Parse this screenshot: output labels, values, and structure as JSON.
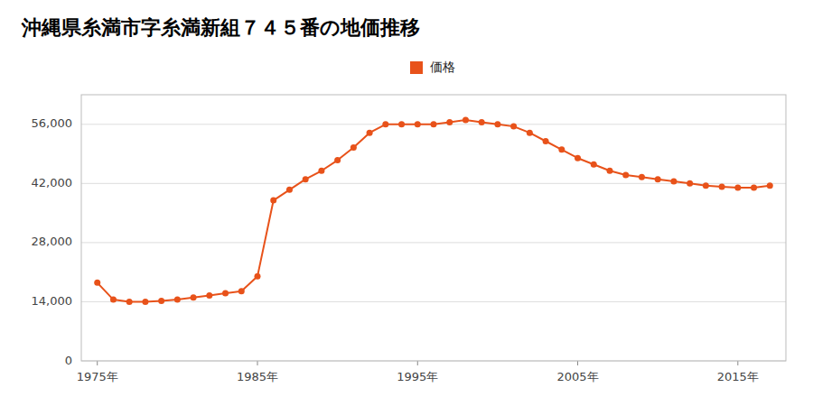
{
  "chart_data": {
    "type": "line",
    "title": "沖縄県糸満市字糸満新組７４５番の地価推移",
    "x": [
      1975,
      1976,
      1977,
      1978,
      1979,
      1980,
      1981,
      1982,
      1983,
      1984,
      1985,
      1986,
      1987,
      1988,
      1989,
      1990,
      1991,
      1992,
      1993,
      1994,
      1995,
      1996,
      1997,
      1998,
      1999,
      2000,
      2001,
      2002,
      2003,
      2004,
      2005,
      2006,
      2007,
      2008,
      2009,
      2010,
      2011,
      2012,
      2013,
      2014,
      2015,
      2016,
      2017
    ],
    "series": [
      {
        "name": "価格",
        "color": "#E8521A",
        "marker": "circle",
        "values": [
          18500,
          14500,
          14000,
          14000,
          14200,
          14500,
          15000,
          15500,
          16000,
          16500,
          20000,
          38000,
          40500,
          43000,
          45000,
          47500,
          50500,
          54000,
          56000,
          56000,
          56000,
          56000,
          56500,
          57000,
          56500,
          56000,
          55500,
          54000,
          52000,
          50000,
          48000,
          46500,
          45000,
          44000,
          43500,
          43000,
          42500,
          42000,
          41500,
          41200,
          41000,
          41000,
          41500
        ]
      }
    ],
    "xlim": [
      1974,
      2018
    ],
    "xticks": [
      {
        "value": 1975,
        "label": "1975年"
      },
      {
        "value": 1985,
        "label": "1985年"
      },
      {
        "value": 1995,
        "label": "1995年"
      },
      {
        "value": 2005,
        "label": "2005年"
      },
      {
        "value": 2015,
        "label": "2015年"
      }
    ],
    "ylim": [
      0,
      63000
    ],
    "yticks": [
      0,
      {
        "value": 14000,
        "label": "14,000"
      },
      {
        "value": 28000,
        "label": "28,000"
      },
      {
        "value": 42000,
        "label": "42,000"
      },
      {
        "value": 56000,
        "label": "56,000"
      }
    ],
    "grid": true,
    "legend": "top"
  }
}
